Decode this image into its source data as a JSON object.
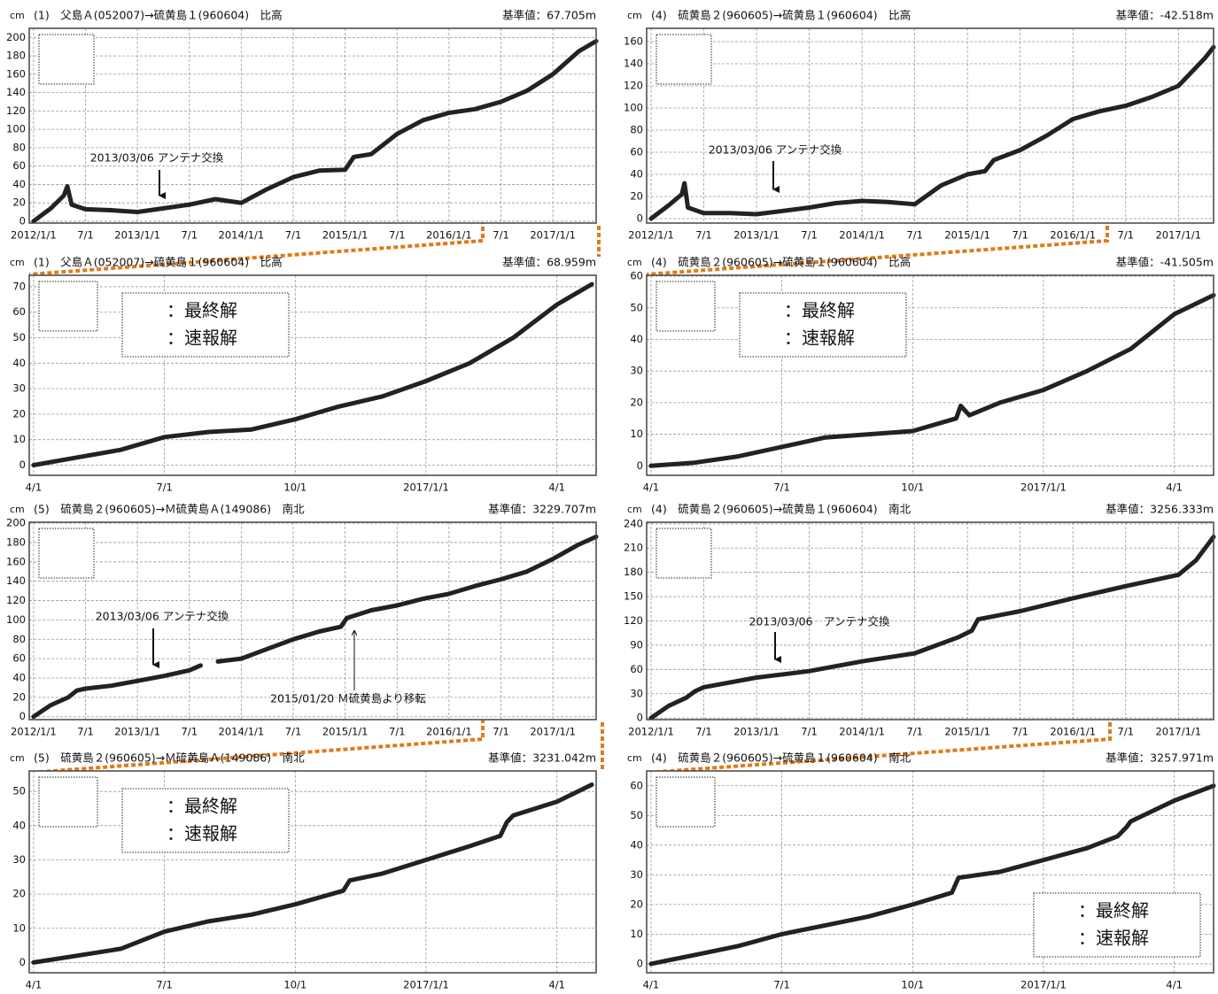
{
  "chart_data": [
    {
      "type": "line",
      "title": "(1)　父島Ａ(052007)→硫黄島１(960604)　比高",
      "reference_label": "基準値：67.705m",
      "y_label": "cm",
      "xlim": [
        -0.5,
        65
      ],
      "ylim": [
        -2,
        210
      ],
      "grid": true,
      "xticks": [
        {
          "value": 0,
          "label": "2012/1/1"
        },
        {
          "value": 6,
          "label": "7/1"
        },
        {
          "value": 12,
          "label": "2013/1/1"
        },
        {
          "value": 18,
          "label": "7/1"
        },
        {
          "value": 24,
          "label": "2014/1/1"
        },
        {
          "value": 30,
          "label": "7/1"
        },
        {
          "value": 36,
          "label": "2015/1/1"
        },
        {
          "value": 42,
          "label": "7/1"
        },
        {
          "value": 48,
          "label": "2016/1/1"
        },
        {
          "value": 54,
          "label": "7/1"
        },
        {
          "value": 60,
          "label": "2017/1/1"
        }
      ],
      "yticks": [
        0,
        20,
        40,
        60,
        80,
        100,
        120,
        140,
        160,
        180,
        200
      ],
      "annotations": [
        "2013/03/06 アンテナ交換"
      ],
      "x": [
        0,
        2,
        3.5,
        3.9,
        4.4,
        6,
        9,
        12,
        15,
        18,
        21,
        24,
        27,
        30,
        33,
        36,
        37,
        39,
        42,
        45,
        48,
        51,
        54,
        57,
        60,
        63,
        65
      ],
      "series": [
        {
          "color": "#222222",
          "values": [
            0,
            14,
            28,
            38,
            18,
            13,
            12,
            10,
            14,
            18,
            24,
            20,
            35,
            48,
            55,
            56,
            70,
            73,
            95,
            110,
            118,
            122,
            130,
            142,
            160,
            185,
            196
          ]
        }
      ]
    },
    {
      "type": "line",
      "title": "(4)　硫黄島２(960605)→硫黄島１(960604)　比高",
      "reference_label": "基準値：-42.518m",
      "y_label": "cm",
      "xlim": [
        -0.5,
        64
      ],
      "ylim": [
        -4,
        172
      ],
      "grid": true,
      "xticks": [
        {
          "value": 0,
          "label": "2012/1/1"
        },
        {
          "value": 6,
          "label": "7/1"
        },
        {
          "value": 12,
          "label": "2013/1/1"
        },
        {
          "value": 18,
          "label": "7/1"
        },
        {
          "value": 24,
          "label": "2014/1/1"
        },
        {
          "value": 30,
          "label": "7/1"
        },
        {
          "value": 36,
          "label": "2015/1/1"
        },
        {
          "value": 42,
          "label": "7/1"
        },
        {
          "value": 48,
          "label": "2016/1/1"
        },
        {
          "value": 54,
          "label": "7/1"
        },
        {
          "value": 60,
          "label": "2017/1/1"
        }
      ],
      "yticks": [
        0,
        20,
        40,
        60,
        80,
        100,
        120,
        140,
        160
      ],
      "annotations": [
        "2013/03/06 アンテナ交換"
      ],
      "x": [
        0,
        2,
        3.5,
        3.8,
        4.2,
        6,
        9,
        12,
        15,
        18,
        21,
        24,
        27,
        30,
        33,
        36,
        38,
        39,
        42,
        45,
        48,
        51,
        54,
        57,
        60,
        63,
        64
      ],
      "series": [
        {
          "color": "#222222",
          "values": [
            0,
            12,
            22,
            32,
            10,
            5,
            5,
            4,
            7,
            10,
            14,
            16,
            15,
            13,
            30,
            40,
            43,
            53,
            62,
            75,
            90,
            97,
            102,
            110,
            120,
            145,
            155
          ]
        }
      ]
    },
    {
      "type": "line",
      "title": "(1)　父島Ａ(052007)→硫黄島１(960604)　比高",
      "reference_label": "基準値：68.959m",
      "y_label": "cm",
      "xlim": [
        -0.1,
        12.9
      ],
      "ylim": [
        -4,
        74.5
      ],
      "grid": true,
      "xticks": [
        {
          "value": 0,
          "label": "4/1"
        },
        {
          "value": 3,
          "label": "7/1"
        },
        {
          "value": 6,
          "label": "10/1"
        },
        {
          "value": 9,
          "label": "2017/1/1"
        },
        {
          "value": 12,
          "label": "4/1"
        }
      ],
      "yticks": [
        0,
        10,
        20,
        30,
        40,
        50,
        60,
        70
      ],
      "legend_labels": [
        "：最終解",
        "：速報解"
      ],
      "x": [
        0,
        1,
        2,
        3,
        4,
        5,
        6,
        7,
        8,
        9,
        10,
        11,
        12,
        12.8
      ],
      "series": [
        {
          "color": "#222222",
          "values": [
            0,
            3,
            6,
            11,
            13,
            14,
            18,
            23,
            27,
            33,
            40,
            50,
            63,
            71
          ]
        }
      ]
    },
    {
      "type": "line",
      "title": "(4)　硫黄島２(960605)→硫黄島１(960604)　比高",
      "reference_label": "基準値：-41.505m",
      "y_label": "cm",
      "xlim": [
        -0.1,
        12.9
      ],
      "ylim": [
        -3,
        60.3
      ],
      "grid": true,
      "xticks": [
        {
          "value": 0,
          "label": "4/1"
        },
        {
          "value": 3,
          "label": "7/1"
        },
        {
          "value": 6,
          "label": "10/1"
        },
        {
          "value": 9,
          "label": "2017/1/1"
        },
        {
          "value": 12,
          "label": "4/1"
        }
      ],
      "yticks": [
        0,
        10,
        20,
        30,
        40,
        50,
        60
      ],
      "legend_labels": [
        "：最終解",
        "：速報解"
      ],
      "x": [
        0,
        1,
        2,
        3,
        4,
        5,
        6,
        7,
        7.1,
        7.3,
        8,
        9,
        10,
        11,
        12,
        12.9
      ],
      "series": [
        {
          "color": "#222222",
          "values": [
            0,
            1,
            3,
            6,
            9,
            10,
            11,
            15,
            19,
            16,
            20,
            24,
            30,
            37,
            48,
            54
          ]
        }
      ]
    },
    {
      "type": "line",
      "title": "(5)　硫黄島２(960605)→Ｍ硫黄島Ａ(149086)　南北",
      "reference_label": "基準値：3229.707m",
      "y_label": "cm",
      "xlim": [
        -0.5,
        65
      ],
      "ylim": [
        -3,
        201
      ],
      "grid": true,
      "xticks": [
        {
          "value": 0,
          "label": "2012/1/1"
        },
        {
          "value": 6,
          "label": "7/1"
        },
        {
          "value": 12,
          "label": "2013/1/1"
        },
        {
          "value": 18,
          "label": "7/1"
        },
        {
          "value": 24,
          "label": "2014/1/1"
        },
        {
          "value": 30,
          "label": "7/1"
        },
        {
          "value": 36,
          "label": "2015/1/1"
        },
        {
          "value": 42,
          "label": "7/1"
        },
        {
          "value": 48,
          "label": "2016/1/1"
        },
        {
          "value": 54,
          "label": "7/1"
        },
        {
          "value": 60,
          "label": "2017/1/1"
        }
      ],
      "yticks": [
        0,
        20,
        40,
        60,
        80,
        100,
        120,
        140,
        160,
        180,
        200
      ],
      "annotations": [
        "2013/03/06 アンテナ交換",
        "2015/01/20 Ｍ硫黄島より移転"
      ],
      "x": [
        0,
        2,
        4,
        5,
        6,
        9,
        12,
        15,
        18,
        19.3,
        20.3,
        21.3,
        24,
        27,
        30,
        33,
        35.5,
        36.2,
        39,
        42,
        45,
        48,
        51,
        54,
        57,
        60,
        63,
        65
      ],
      "series": [
        {
          "color": "#222222",
          "values": [
            0,
            12,
            20,
            27,
            29,
            32,
            37,
            42,
            48,
            53,
            null,
            57,
            60,
            70,
            80,
            88,
            93,
            102,
            110,
            115,
            122,
            127,
            135,
            142,
            150,
            163,
            178,
            186
          ]
        }
      ]
    },
    {
      "type": "line",
      "title": "(4)　硫黄島２(960605)→硫黄島１(960604)　南北",
      "reference_label": "基準値：3256.333m",
      "y_label": "cm",
      "xlim": [
        -0.5,
        64
      ],
      "ylim": [
        -2,
        242
      ],
      "grid": true,
      "xticks": [
        {
          "value": 0,
          "label": "2012/1/1"
        },
        {
          "value": 6,
          "label": "7/1"
        },
        {
          "value": 12,
          "label": "2013/1/1"
        },
        {
          "value": 18,
          "label": "7/1"
        },
        {
          "value": 24,
          "label": "2014/1/1"
        },
        {
          "value": 30,
          "label": "7/1"
        },
        {
          "value": 36,
          "label": "2015/1/1"
        },
        {
          "value": 42,
          "label": "7/1"
        },
        {
          "value": 48,
          "label": "2016/1/1"
        },
        {
          "value": 54,
          "label": "7/1"
        },
        {
          "value": 60,
          "label": "2017/1/1"
        }
      ],
      "yticks": [
        0,
        30,
        60,
        90,
        120,
        150,
        180,
        210,
        240
      ],
      "annotations": [
        "2013/03/06　アンテナ交換"
      ],
      "x": [
        0,
        2,
        4,
        5,
        6,
        12,
        18,
        24,
        30,
        35,
        36.5,
        37.2,
        42,
        48,
        54,
        60,
        62,
        64
      ],
      "series": [
        {
          "color": "#222222",
          "values": [
            0,
            15,
            25,
            33,
            38,
            50,
            58,
            70,
            80,
            100,
            108,
            122,
            132,
            148,
            163,
            177,
            195,
            224
          ]
        }
      ]
    },
    {
      "type": "line",
      "title": "(5)　硫黄島２(960605)→Ｍ硫黄島Ａ(149086)　南北",
      "reference_label": "基準値：3231.042m",
      "y_label": "cm",
      "xlim": [
        -0.1,
        12.9
      ],
      "ylim": [
        -3,
        56
      ],
      "grid": true,
      "xticks": [
        {
          "value": 0,
          "label": "4/1"
        },
        {
          "value": 3,
          "label": "7/1"
        },
        {
          "value": 6,
          "label": "10/1"
        },
        {
          "value": 9,
          "label": "2017/1/1"
        },
        {
          "value": 12,
          "label": "4/1"
        }
      ],
      "yticks": [
        0,
        10,
        20,
        30,
        40,
        50
      ],
      "legend_labels": [
        "：最終解",
        "：速報解"
      ],
      "x": [
        0,
        1,
        2,
        3,
        4,
        5,
        6,
        7.1,
        7.25,
        8,
        9,
        10,
        10.7,
        10.85,
        11,
        12,
        12.8
      ],
      "series": [
        {
          "color": "#222222",
          "values": [
            0,
            2,
            4,
            9,
            12,
            14,
            17,
            21,
            24,
            26,
            30,
            34,
            37,
            41,
            43,
            47,
            52
          ]
        }
      ]
    },
    {
      "type": "line",
      "title": "(4)　硫黄島２(960605)→硫黄島１(960604)　南北",
      "reference_label": "基準値：3257.971m",
      "y_label": "cm",
      "xlim": [
        -0.1,
        12.9
      ],
      "ylim": [
        -3,
        65
      ],
      "grid": true,
      "xticks": [
        {
          "value": 0,
          "label": "4/1"
        },
        {
          "value": 3,
          "label": "7/1"
        },
        {
          "value": 6,
          "label": "10/1"
        },
        {
          "value": 9,
          "label": "2017/1/1"
        },
        {
          "value": 12,
          "label": "4/1"
        }
      ],
      "yticks": [
        0,
        10,
        20,
        30,
        40,
        50,
        60
      ],
      "legend_labels": [
        "：最終解",
        "：速報解"
      ],
      "x": [
        0,
        1,
        2,
        3,
        4,
        5,
        6,
        6.9,
        7.05,
        8,
        9,
        10,
        10.7,
        10.9,
        11,
        12,
        12.9
      ],
      "series": [
        {
          "color": "#222222",
          "values": [
            0,
            3,
            6,
            10,
            13,
            16,
            20,
            24,
            29,
            31,
            35,
            39,
            43,
            46,
            48,
            55,
            60
          ]
        }
      ]
    }
  ]
}
